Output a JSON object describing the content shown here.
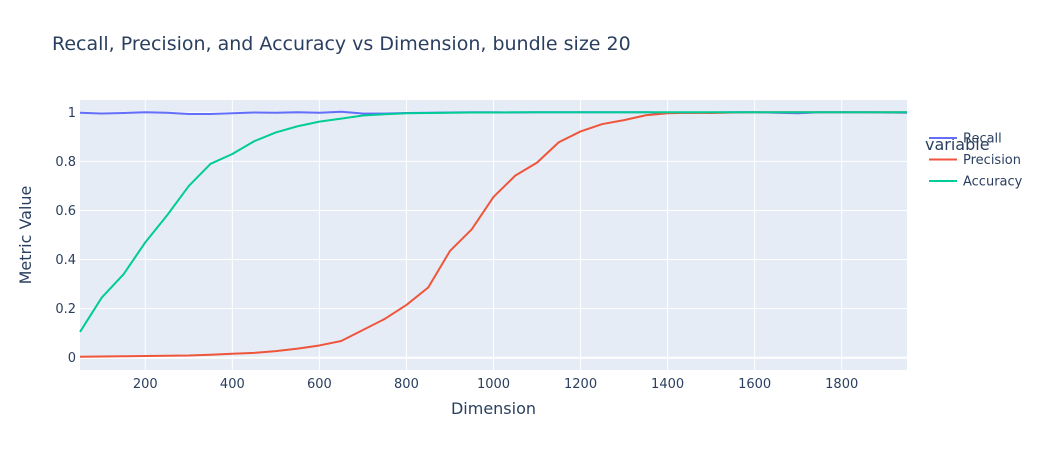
{
  "chart_data": {
    "type": "line",
    "title": "Recall, Precision, and Accuracy vs Dimension, bundle size 20",
    "xlabel": "Dimension",
    "ylabel": "Metric Value",
    "xlim": [
      50,
      1950
    ],
    "ylim": [
      -0.05,
      1.05
    ],
    "x_ticks": [
      200,
      400,
      600,
      800,
      1000,
      1200,
      1400,
      1600,
      1800
    ],
    "y_ticks": [
      0,
      0.2,
      0.4,
      0.6,
      0.8,
      1
    ],
    "grid": true,
    "legend_title": "variable",
    "legend_position": "right",
    "x": [
      50,
      100,
      150,
      200,
      250,
      300,
      350,
      400,
      450,
      500,
      550,
      600,
      650,
      700,
      750,
      800,
      850,
      900,
      950,
      1000,
      1050,
      1100,
      1150,
      1200,
      1250,
      1300,
      1350,
      1400,
      1450,
      1500,
      1550,
      1600,
      1650,
      1700,
      1750,
      1800,
      1850,
      1900,
      1950
    ],
    "series": [
      {
        "name": "Recall",
        "color": "#636efa",
        "values": [
          0.998,
          0.995,
          0.997,
          1.0,
          0.998,
          0.993,
          0.993,
          0.996,
          0.999,
          0.998,
          1.0,
          0.998,
          1.002,
          0.995,
          0.995,
          0.997,
          0.998,
          0.999,
          1.0,
          1.0,
          0.999,
          1.0,
          1.0,
          1.0,
          1.0,
          1.0,
          1.0,
          0.998,
          0.998,
          0.999,
          1.0,
          1.0,
          0.998,
          0.996,
          1.0,
          1.0,
          1.0,
          0.999,
          0.998
        ]
      },
      {
        "name": "Precision",
        "color": "#ef553b",
        "values": [
          0.004,
          0.005,
          0.006,
          0.007,
          0.008,
          0.009,
          0.012,
          0.016,
          0.02,
          0.027,
          0.037,
          0.05,
          0.068,
          0.113,
          0.158,
          0.215,
          0.286,
          0.435,
          0.523,
          0.655,
          0.742,
          0.795,
          0.878,
          0.922,
          0.952,
          0.968,
          0.988,
          0.996,
          0.998,
          0.997,
          0.999,
          1.0,
          1.0,
          1.0,
          1.0,
          1.0,
          1.0,
          1.0,
          1.0
        ]
      },
      {
        "name": "Accuracy",
        "color": "#00cc96",
        "values": [
          0.105,
          0.245,
          0.34,
          0.47,
          0.58,
          0.7,
          0.79,
          0.83,
          0.882,
          0.918,
          0.943,
          0.962,
          0.974,
          0.987,
          0.992,
          0.996,
          0.997,
          0.998,
          0.999,
          0.999,
          1.0,
          1.0,
          1.0,
          1.0,
          1.0,
          1.0,
          1.0,
          1.0,
          1.0,
          1.0,
          1.0,
          1.0,
          1.0,
          1.0,
          1.0,
          1.0,
          1.0,
          1.0,
          1.0
        ]
      }
    ]
  }
}
